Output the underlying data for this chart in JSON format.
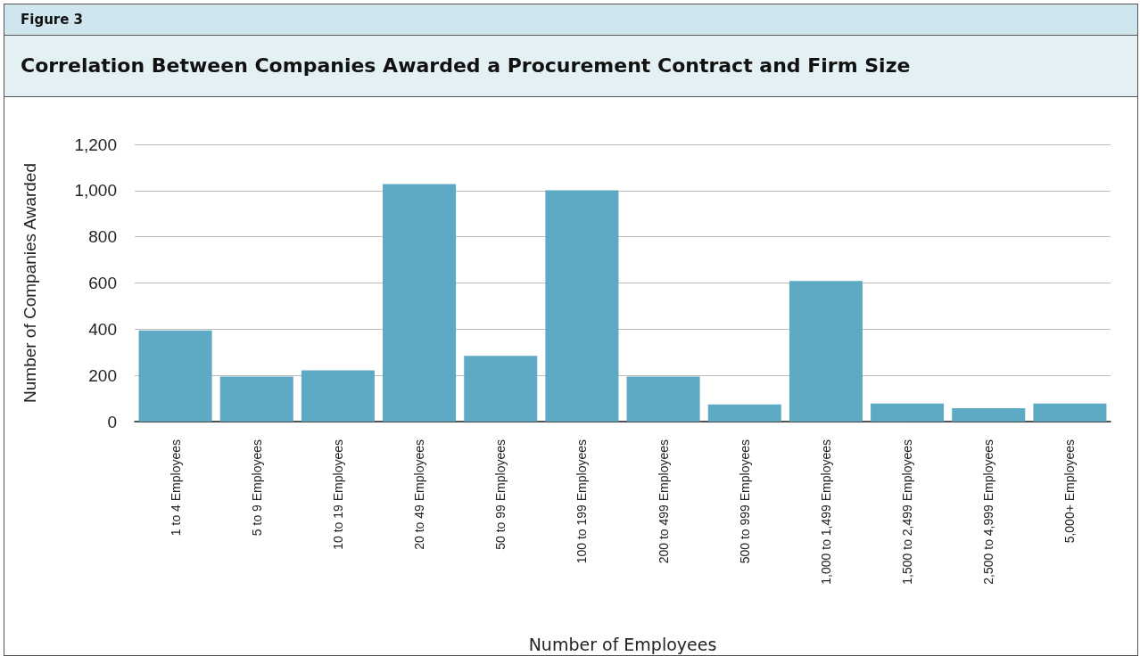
{
  "chart_data": {
    "type": "bar",
    "title": "Correlation Between Companies Awarded a Procurement Contract and Firm Size",
    "annotations": [
      "Figure 3"
    ],
    "xlabel": "Number of Employees",
    "ylabel": "Number of Companies Awarded",
    "categories": [
      "1 to 4 Employees",
      "5 to 9 Employees",
      "10 to 19 Employees",
      "20 to 49 Employees",
      "50 to 99 Employees",
      "100 to 199 Employees",
      "200 to 499 Employees",
      "500 to 999 Employees",
      "1,000 to 1,499 Employees",
      "1,500 to 2,499 Employees",
      "2,500 to 4,999 Employees",
      "5,000+ Employees"
    ],
    "values": [
      395,
      195,
      222,
      1028,
      285,
      1001,
      195,
      74,
      609,
      78,
      58,
      78
    ],
    "color": "#5eaac5",
    "ylim": [
      0,
      1200
    ],
    "yticks": [
      0,
      200,
      400,
      600,
      800,
      {
        "value": 1000,
        "label": "1,000"
      },
      {
        "value": 1200,
        "label": "1,200"
      }
    ],
    "grid": "y"
  }
}
